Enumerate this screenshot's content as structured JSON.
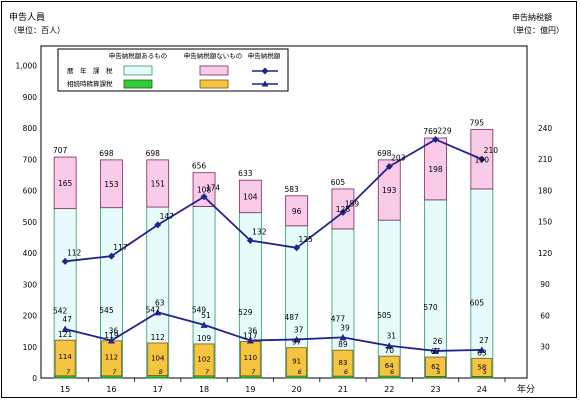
{
  "chart_data": {
    "type": "bar",
    "left_title": "申告人員",
    "left_unit": "（単位：百人）",
    "right_title": "申告納税額",
    "right_unit": "（単位：億円）",
    "xlabel": "年分",
    "categories": [
      "15",
      "16",
      "17",
      "18",
      "19",
      "20",
      "21",
      "22",
      "23",
      "24"
    ],
    "left_ylim": [
      0,
      1100
    ],
    "left_ticks": [
      "0",
      "100",
      "200",
      "300",
      "400",
      "500",
      "600",
      "700",
      "800",
      "900",
      "1,000"
    ],
    "right_ylim": [
      0,
      270
    ],
    "right_ticks": [
      "30",
      "60",
      "90",
      "120",
      "150",
      "180",
      "210",
      "240"
    ],
    "grid": false,
    "legend_position": "top-left inside plot",
    "legend": {
      "col_tax_yes": "申告納税額あるもの",
      "col_tax_no": "申告納税額ないもの",
      "col_tax_amount": "申告納税額",
      "row_1": "暦　年　課　税",
      "row_2": "相続時精算課税"
    },
    "series": [
      {
        "name": "暦年課税（申告納税額あるもの）",
        "axis": "left",
        "color": "#e8fbfb",
        "values": [
          542,
          545,
          547,
          549,
          529,
          487,
          477,
          505,
          570,
          605
        ]
      },
      {
        "name": "暦年課税（申告納税額ないもの）",
        "axis": "left",
        "color": "#f9cbe8",
        "values": [
          165,
          153,
          151,
          108,
          104,
          96,
          128,
          193,
          198,
          190
        ]
      },
      {
        "name": "相続時精算課税（申告納税額あるもの）",
        "axis": "left",
        "color": "#33cc33",
        "values": [
          7,
          7,
          8,
          7,
          7,
          6,
          6,
          6,
          5,
          5
        ]
      },
      {
        "name": "相続時精算課税（申告納税額ないもの）",
        "axis": "left",
        "color": "#f5c542",
        "values": [
          114,
          112,
          104,
          102,
          110,
          91,
          83,
          64,
          62,
          58
        ]
      },
      {
        "name": "暦年課税（申告納税額）",
        "axis": "right",
        "color": "#23238e",
        "values": [
          112,
          117,
          147,
          174,
          132,
          125,
          159,
          203,
          229,
          210
        ]
      },
      {
        "name": "相続時精算課税（申告納税額）",
        "axis": "right",
        "color": "#23238e",
        "values": [
          47,
          36,
          63,
          51,
          36,
          37,
          39,
          31,
          26,
          27
        ]
      }
    ],
    "bar_top_totals_rekinen": [
      "707",
      "698",
      "698",
      "656",
      "633",
      "583",
      "605",
      "698",
      "769",
      "795"
    ],
    "bar_top_totals_seisan": [
      "121",
      "119",
      "112",
      "109",
      "117",
      "97",
      "89",
      "70",
      "67",
      "63"
    ],
    "bar_labels_rekinen_yes": [
      "542",
      "545",
      "547",
      "549",
      "529",
      "487",
      "477",
      "505",
      "570",
      "605"
    ],
    "bar_labels_rekinen_no": [
      "165",
      "153",
      "151",
      "108",
      "104",
      "96",
      "128",
      "193",
      "198",
      "190"
    ],
    "bar_labels_seisan_no": [
      "114",
      "112",
      "104",
      "102",
      "110",
      "91",
      "83",
      "64",
      "62",
      "58"
    ],
    "bar_labels_seisan_yes": [
      "7",
      "7",
      "8",
      "7",
      "7",
      "6",
      "6",
      "6",
      "5",
      "5"
    ],
    "line_labels_rekinen": [
      "112",
      "117",
      "147",
      "174",
      "132",
      "125",
      "159",
      "203",
      "229",
      "210"
    ],
    "line_labels_seisan": [
      "47",
      "36",
      "63",
      "51",
      "36",
      "37",
      "39",
      "31",
      "26",
      "27"
    ]
  }
}
